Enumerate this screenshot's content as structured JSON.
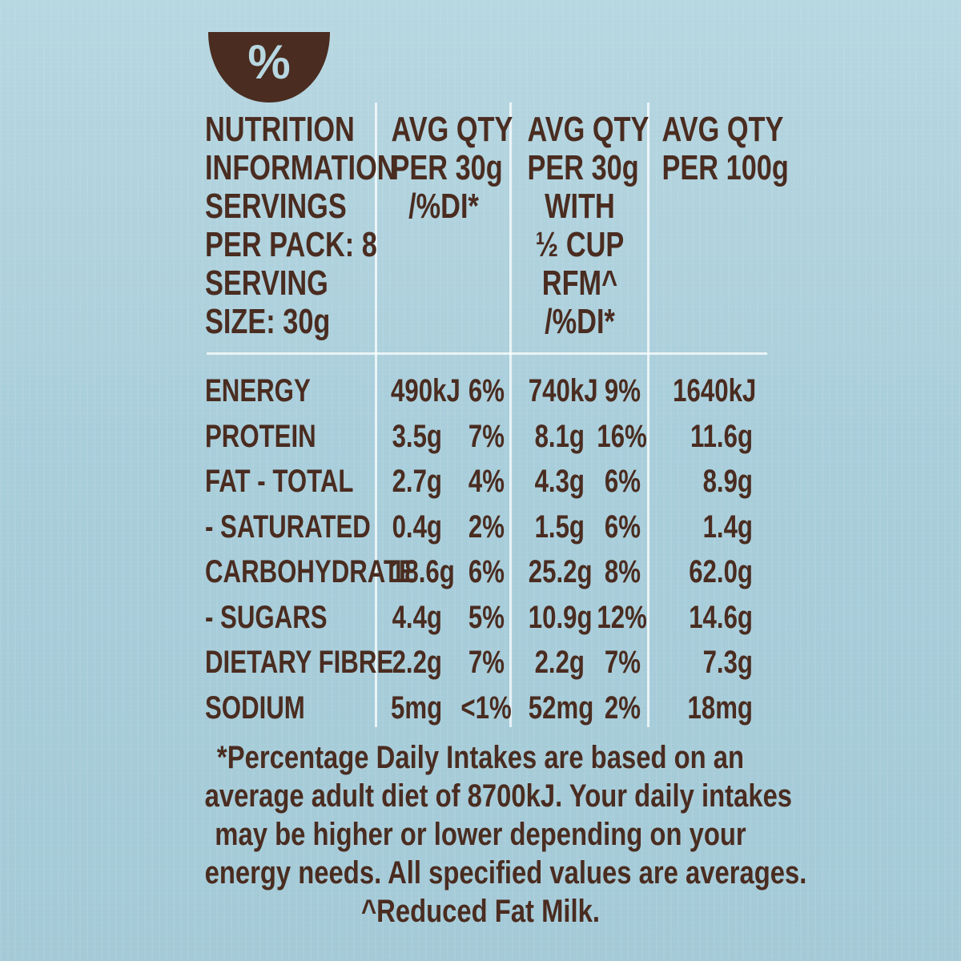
{
  "icon": {
    "name": "percent-bowl-icon",
    "glyph": "%"
  },
  "header": {
    "col1_lines": [
      "NUTRITION",
      "INFORMATION",
      "SERVINGS",
      "PER PACK: 8",
      "SERVING",
      "SIZE: 30g"
    ],
    "col2_lines": [
      "AVG QTY",
      "PER 30g",
      "/%DI*"
    ],
    "col3_lines": [
      "AVG QTY",
      "PER 30g",
      "WITH",
      "½ CUP",
      "RFM^",
      "/%DI*"
    ],
    "col4_lines": [
      "AVG QTY",
      "PER 100g"
    ]
  },
  "rows": [
    {
      "name": "ENERGY",
      "q30": "490kJ",
      "di30": "6%",
      "qmilk": "740kJ",
      "dimilk": "9%",
      "q100": "1640kJ"
    },
    {
      "name": "PROTEIN",
      "q30": "3.5g",
      "di30": "7%",
      "qmilk": "8.1g",
      "dimilk": "16%",
      "q100": "11.6g"
    },
    {
      "name": "FAT - TOTAL",
      "q30": "2.7g",
      "di30": "4%",
      "qmilk": "4.3g",
      "dimilk": "6%",
      "q100": "8.9g"
    },
    {
      "name": "- SATURATED",
      "q30": "0.4g",
      "di30": "2%",
      "qmilk": "1.5g",
      "dimilk": "6%",
      "q100": "1.4g"
    },
    {
      "name": "CARBOHYDRATE",
      "q30": "18.6g",
      "di30": "6%",
      "qmilk": "25.2g",
      "dimilk": "8%",
      "q100": "62.0g"
    },
    {
      "name": "- SUGARS",
      "q30": "4.4g",
      "di30": "5%",
      "qmilk": "10.9g",
      "dimilk": "12%",
      "q100": "14.6g"
    },
    {
      "name": "DIETARY FIBRE",
      "q30": "2.2g",
      "di30": "7%",
      "qmilk": "2.2g",
      "dimilk": "7%",
      "q100": "7.3g"
    },
    {
      "name": "SODIUM",
      "q30": "5mg",
      "di30": "<1%",
      "qmilk": "52mg",
      "dimilk": "2%",
      "q100": "18mg"
    }
  ],
  "footnote": [
    "*Percentage Daily Intakes are based on an",
    "average adult diet of 8700kJ. Your daily intakes",
    "may be higher or lower depending on your",
    "energy needs. All specified values are averages.",
    "^Reduced Fat Milk."
  ],
  "colors": {
    "text": "#4a2c20",
    "background": "#b7d7e1",
    "rule": "#ffffff"
  }
}
